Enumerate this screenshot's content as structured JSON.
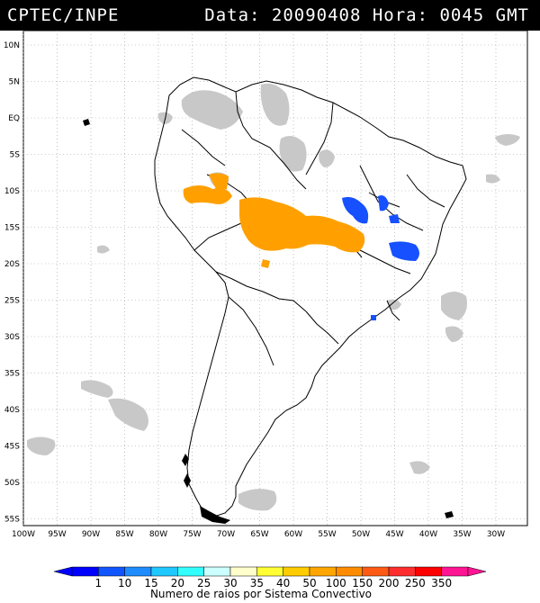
{
  "header": {
    "left": "CPTEC/INPE",
    "right": "Data: 20090408  Hora: 0045 GMT"
  },
  "axes": {
    "lat_labels": [
      "10N",
      "5N",
      "EQ",
      "5S",
      "10S",
      "15S",
      "20S",
      "25S",
      "30S",
      "35S",
      "40S",
      "45S",
      "50S",
      "55S"
    ],
    "lon_labels": [
      "100W",
      "95W",
      "90W",
      "85W",
      "80W",
      "75W",
      "70W",
      "65W",
      "60W",
      "55W",
      "50W",
      "45W",
      "40W",
      "35W",
      "30W"
    ]
  },
  "colorbar": {
    "labels": [
      "1",
      "10",
      "15",
      "20",
      "25",
      "30",
      "35",
      "40",
      "50",
      "100",
      "150",
      "200",
      "250",
      "350"
    ],
    "colors": [
      "#0000ff",
      "#1155ff",
      "#1f8cff",
      "#1fc8ff",
      "#33ffff",
      "#ccffff",
      "#ffffcc",
      "#ffff33",
      "#ffcc00",
      "#ffa500",
      "#ff8c00",
      "#ff5a14",
      "#ff2d2d",
      "#ff0000",
      "#ff1493"
    ],
    "title": "Numero de raios por Sistema Convectivo"
  },
  "colors": {
    "clouds": "#c8c8c8",
    "orange_systems": "#ffa000",
    "blue_systems": "#1650ff"
  }
}
